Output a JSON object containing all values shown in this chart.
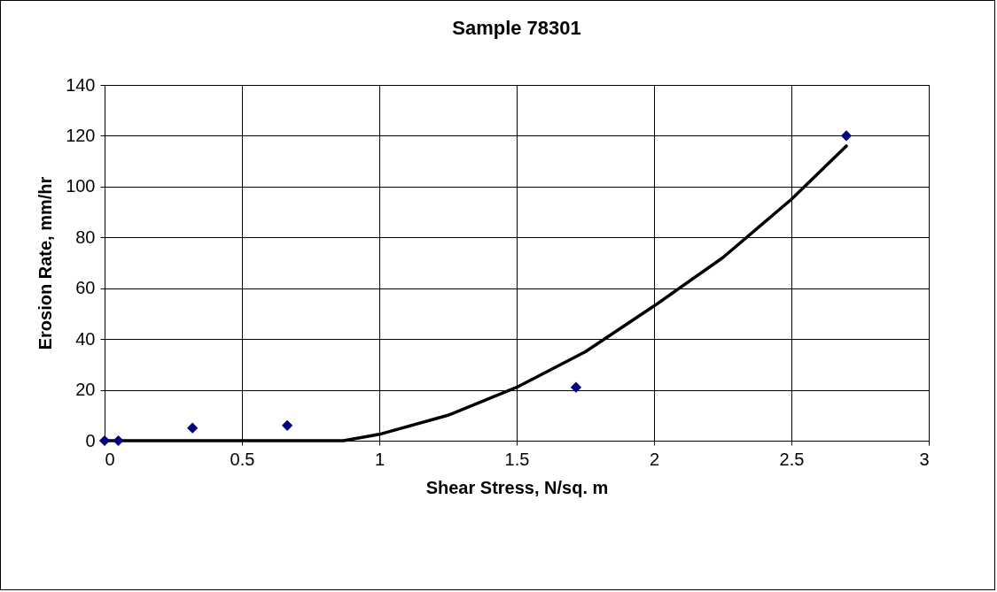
{
  "chart_data": {
    "type": "scatter",
    "title": "Sample 78301",
    "xlabel": "Shear Stress, N/sq. m",
    "ylabel": "Erosion Rate, mm/hr",
    "xlim": [
      0,
      3
    ],
    "xticks": [
      0,
      0.5,
      1,
      1.5,
      2,
      2.5,
      3
    ],
    "ylim": [
      0,
      140
    ],
    "yticks": [
      0,
      20,
      40,
      60,
      80,
      100,
      120,
      140
    ],
    "grid": true,
    "series": [
      {
        "marker": "diamond",
        "color": "#000080",
        "x": [
          0,
          0.05,
          0.32,
          0.665,
          1.716,
          2.7
        ],
        "values": [
          0,
          0,
          5,
          6,
          21,
          120
        ]
      },
      {
        "type": "line",
        "color": "#000000",
        "line_style": "solid",
        "x": [
          0,
          0.87,
          1.0,
          1.25,
          1.5,
          1.75,
          2.0,
          2.25,
          2.5,
          2.7
        ],
        "values": [
          0,
          0,
          2.5,
          10,
          21,
          35,
          53,
          72,
          95,
          116
        ]
      }
    ]
  }
}
